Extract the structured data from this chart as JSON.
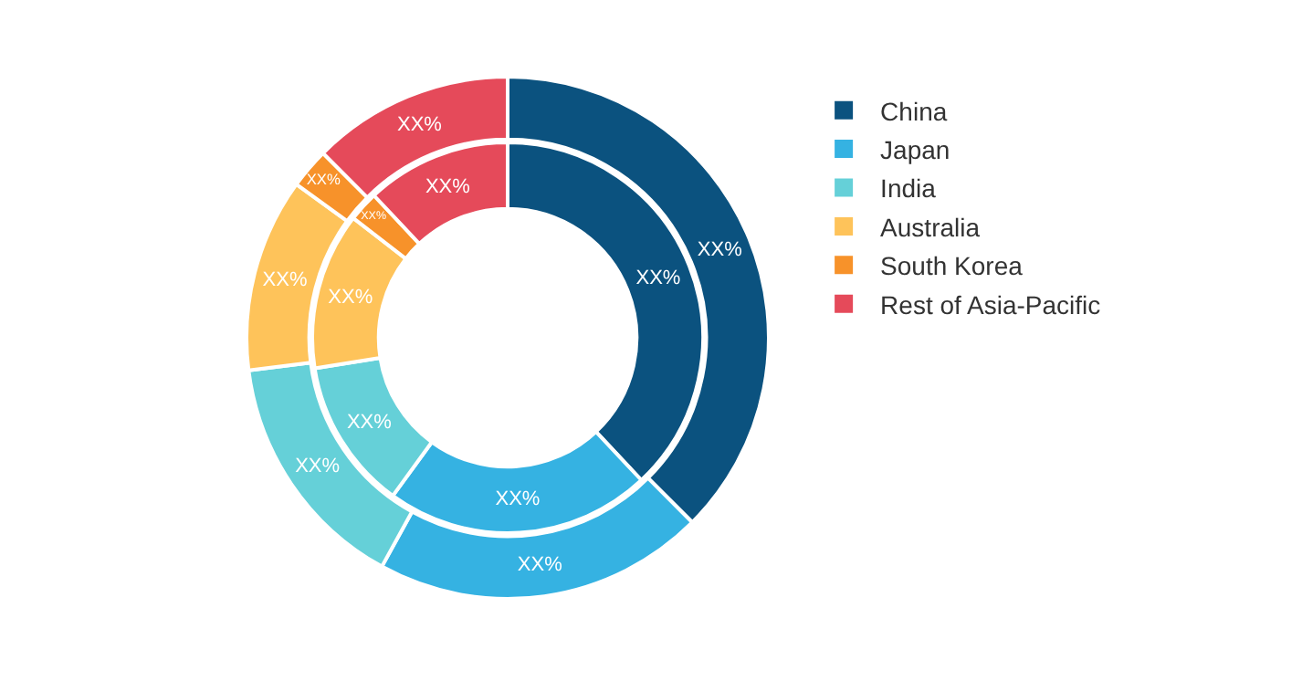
{
  "chart_data": {
    "type": "donut",
    "categories": [
      "China",
      "Japan",
      "India",
      "Australia",
      "South Korea",
      "Rest of Asia-Pacific"
    ],
    "colors": [
      "#0b527f",
      "#35b2e2",
      "#65d0d8",
      "#fec35a",
      "#f7922a",
      "#e54a5a"
    ],
    "series": [
      {
        "values": [
          37.5,
          20.5,
          15,
          12,
          2.5,
          12.5
        ],
        "value_labels": [
          "XX%",
          "XX%",
          "XX%",
          "XX%",
          "XX%",
          "XX%"
        ]
      },
      {
        "values": [
          38,
          22,
          12.5,
          13,
          2.5,
          12
        ],
        "value_labels": [
          "XX%",
          "XX%",
          "XX%",
          "XX%",
          "XX%",
          "XX%"
        ]
      }
    ],
    "legend": "right"
  }
}
